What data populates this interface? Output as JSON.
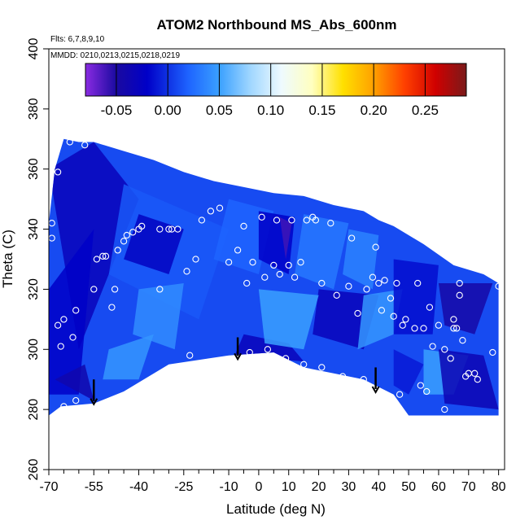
{
  "chart_data": {
    "type": "heatmap",
    "title": "ATOM2 Northbound MS_Abs_600nm",
    "subtitle_flights": "Flts: 6,7,8,9,10",
    "subtitle_dates": "MMDD: 0210,0213,0215,0218,0219",
    "xlabel": "Latitude (deg N)",
    "ylabel": "Theta (C)",
    "xlim": [
      -70,
      82
    ],
    "ylim": [
      260,
      400
    ],
    "x_ticks": [
      -70,
      -55,
      -40,
      -25,
      -10,
      0,
      10,
      20,
      30,
      40,
      50,
      60,
      70,
      80
    ],
    "x_minor_ticks": [
      -65,
      -60,
      -50,
      -45,
      -35,
      -30,
      -20,
      -15,
      -5,
      5,
      15,
      25,
      35,
      45,
      55,
      65,
      75
    ],
    "y_ticks": [
      260,
      280,
      300,
      320,
      340,
      360,
      380,
      400
    ],
    "colorbar": {
      "range": [
        -0.08,
        0.29
      ],
      "ticks": [
        -0.05,
        0.0,
        0.05,
        0.1,
        0.15,
        0.2,
        0.25
      ],
      "tick_labels": [
        "-0.05",
        "0.00",
        "0.05",
        "0.10",
        "0.15",
        "0.20",
        "0.25"
      ],
      "color_stops": [
        {
          "v": -0.08,
          "c": "#8a2be2"
        },
        {
          "v": -0.05,
          "c": "#1a0aa0"
        },
        {
          "v": -0.02,
          "c": "#0000c8"
        },
        {
          "v": 0.02,
          "c": "#1e64ff"
        },
        {
          "v": 0.05,
          "c": "#3aa0ff"
        },
        {
          "v": 0.08,
          "c": "#9fd6ff"
        },
        {
          "v": 0.11,
          "c": "#eefaff"
        },
        {
          "v": 0.14,
          "c": "#ffffc0"
        },
        {
          "v": 0.17,
          "c": "#ffe000"
        },
        {
          "v": 0.2,
          "c": "#ffa000"
        },
        {
          "v": 0.23,
          "c": "#ff4000"
        },
        {
          "v": 0.26,
          "c": "#d00000"
        },
        {
          "v": 0.29,
          "c": "#7a1a1a"
        }
      ]
    },
    "field_shape_top": [
      [
        -70,
        342
      ],
      [
        -68,
        360
      ],
      [
        -65,
        370
      ],
      [
        -60,
        369
      ],
      [
        -55,
        369
      ],
      [
        -45,
        366
      ],
      [
        -35,
        363
      ],
      [
        -25,
        359
      ],
      [
        -15,
        356
      ],
      [
        -5,
        354
      ],
      [
        5,
        352
      ],
      [
        15,
        351
      ],
      [
        25,
        348
      ],
      [
        35,
        346
      ],
      [
        40,
        343
      ],
      [
        45,
        341
      ],
      [
        55,
        335
      ],
      [
        65,
        328
      ],
      [
        75,
        325
      ],
      [
        80,
        322
      ]
    ],
    "field_shape_bottom": [
      [
        -70,
        278
      ],
      [
        -66,
        281
      ],
      [
        -55,
        282
      ],
      [
        -45,
        286
      ],
      [
        -30,
        295
      ],
      [
        -10,
        298
      ],
      [
        5,
        299
      ],
      [
        15,
        294
      ],
      [
        25,
        292
      ],
      [
        35,
        290
      ],
      [
        45,
        285
      ],
      [
        50,
        278
      ],
      [
        60,
        278
      ],
      [
        80,
        278
      ]
    ],
    "field_patches": [
      {
        "v": -0.03,
        "pts": [
          [
            -70,
            360
          ],
          [
            -55,
            369
          ],
          [
            -40,
            350
          ],
          [
            -60,
            300
          ]
        ]
      },
      {
        "v": -0.02,
        "pts": [
          [
            -70,
            320
          ],
          [
            -55,
            340
          ],
          [
            -60,
            285
          ],
          [
            -70,
            285
          ]
        ]
      },
      {
        "v": -0.04,
        "pts": [
          [
            -68,
            290
          ],
          [
            -55,
            283
          ],
          [
            -58,
            295
          ]
        ]
      },
      {
        "v": 0.015,
        "pts": [
          [
            -45,
            355
          ],
          [
            -10,
            340
          ],
          [
            -20,
            310
          ],
          [
            -50,
            325
          ]
        ]
      },
      {
        "v": -0.025,
        "pts": [
          [
            -40,
            345
          ],
          [
            -25,
            340
          ],
          [
            -30,
            325
          ],
          [
            -45,
            330
          ]
        ]
      },
      {
        "v": 0.04,
        "pts": [
          [
            -40,
            320
          ],
          [
            -25,
            322
          ],
          [
            -28,
            300
          ],
          [
            -42,
            305
          ]
        ]
      },
      {
        "v": 0.02,
        "pts": [
          [
            -10,
            350
          ],
          [
            5,
            346
          ],
          [
            0,
            325
          ],
          [
            -15,
            330
          ]
        ]
      },
      {
        "v": -0.02,
        "pts": [
          [
            0,
            346
          ],
          [
            12,
            344
          ],
          [
            10,
            325
          ],
          [
            0,
            330
          ]
        ]
      },
      {
        "v": -0.06,
        "pts": [
          [
            7,
            344
          ],
          [
            11,
            342
          ],
          [
            9,
            330
          ]
        ]
      },
      {
        "v": -0.03,
        "pts": [
          [
            -5,
            305
          ],
          [
            10,
            302
          ],
          [
            15,
            296
          ],
          [
            -8,
            298
          ]
        ]
      },
      {
        "v": 0.03,
        "pts": [
          [
            15,
            345
          ],
          [
            30,
            342
          ],
          [
            25,
            320
          ],
          [
            12,
            325
          ]
        ]
      },
      {
        "v": 0.035,
        "pts": [
          [
            30,
            340
          ],
          [
            40,
            338
          ],
          [
            38,
            320
          ],
          [
            28,
            325
          ]
        ]
      },
      {
        "v": -0.03,
        "pts": [
          [
            20,
            320
          ],
          [
            40,
            318
          ],
          [
            35,
            300
          ],
          [
            18,
            305
          ]
        ]
      },
      {
        "v": 0.045,
        "pts": [
          [
            35,
            318
          ],
          [
            48,
            320
          ],
          [
            45,
            305
          ],
          [
            33,
            300
          ]
        ]
      },
      {
        "v": -0.015,
        "pts": [
          [
            45,
            330
          ],
          [
            60,
            328
          ],
          [
            58,
            305
          ],
          [
            45,
            305
          ]
        ]
      },
      {
        "v": -0.045,
        "pts": [
          [
            60,
            322
          ],
          [
            78,
            322
          ],
          [
            72,
            305
          ],
          [
            62,
            308
          ]
        ]
      },
      {
        "v": 0.05,
        "pts": [
          [
            55,
            300
          ],
          [
            70,
            298
          ],
          [
            65,
            285
          ],
          [
            55,
            285
          ]
        ]
      },
      {
        "v": -0.035,
        "pts": [
          [
            60,
            300
          ],
          [
            75,
            298
          ],
          [
            80,
            280
          ],
          [
            62,
            282
          ]
        ]
      },
      {
        "v": 0.045,
        "pts": [
          [
            -50,
            300
          ],
          [
            -35,
            305
          ],
          [
            -40,
            290
          ],
          [
            -52,
            290
          ]
        ]
      },
      {
        "v": 0.05,
        "pts": [
          [
            0,
            320
          ],
          [
            20,
            318
          ],
          [
            15,
            300
          ],
          [
            2,
            302
          ]
        ]
      },
      {
        "v": -0.01,
        "pts": [
          [
            45,
            300
          ],
          [
            55,
            295
          ],
          [
            50,
            285
          ],
          [
            45,
            288
          ]
        ]
      }
    ],
    "points": [
      {
        "x": -69,
        "y": 342
      },
      {
        "x": -69,
        "y": 337
      },
      {
        "x": -68,
        "y": 278
      },
      {
        "x": -67,
        "y": 359
      },
      {
        "x": -67,
        "y": 308
      },
      {
        "x": -66,
        "y": 301
      },
      {
        "x": -65,
        "y": 281
      },
      {
        "x": -65,
        "y": 310
      },
      {
        "x": -63,
        "y": 369
      },
      {
        "x": -62,
        "y": 304
      },
      {
        "x": -61,
        "y": 313
      },
      {
        "x": -61,
        "y": 283
      },
      {
        "x": -58,
        "y": 368
      },
      {
        "x": -55,
        "y": 320
      },
      {
        "x": -54,
        "y": 330
      },
      {
        "x": -52,
        "y": 331
      },
      {
        "x": -51,
        "y": 331
      },
      {
        "x": -49,
        "y": 314
      },
      {
        "x": -48,
        "y": 320
      },
      {
        "x": -47,
        "y": 333
      },
      {
        "x": -45,
        "y": 336
      },
      {
        "x": -44,
        "y": 338
      },
      {
        "x": -42,
        "y": 339
      },
      {
        "x": -40,
        "y": 340
      },
      {
        "x": -39,
        "y": 341
      },
      {
        "x": -33,
        "y": 320
      },
      {
        "x": -33,
        "y": 340
      },
      {
        "x": -30,
        "y": 340
      },
      {
        "x": -29,
        "y": 340
      },
      {
        "x": -27,
        "y": 340
      },
      {
        "x": -24,
        "y": 326
      },
      {
        "x": -23,
        "y": 298
      },
      {
        "x": -21,
        "y": 330
      },
      {
        "x": -19,
        "y": 343
      },
      {
        "x": -16,
        "y": 346
      },
      {
        "x": -13,
        "y": 347
      },
      {
        "x": -10,
        "y": 329
      },
      {
        "x": -7,
        "y": 333
      },
      {
        "x": -5,
        "y": 341
      },
      {
        "x": -4,
        "y": 322
      },
      {
        "x": -3,
        "y": 299
      },
      {
        "x": -2,
        "y": 329
      },
      {
        "x": 1,
        "y": 344
      },
      {
        "x": 2,
        "y": 324
      },
      {
        "x": 3,
        "y": 300
      },
      {
        "x": 5,
        "y": 328
      },
      {
        "x": 6,
        "y": 343
      },
      {
        "x": 7,
        "y": 325
      },
      {
        "x": 9,
        "y": 297
      },
      {
        "x": 10,
        "y": 328
      },
      {
        "x": 11,
        "y": 343
      },
      {
        "x": 12,
        "y": 324
      },
      {
        "x": 14,
        "y": 329
      },
      {
        "x": 15,
        "y": 295
      },
      {
        "x": 16,
        "y": 343
      },
      {
        "x": 18,
        "y": 344
      },
      {
        "x": 19,
        "y": 343
      },
      {
        "x": 21,
        "y": 322
      },
      {
        "x": 21,
        "y": 294
      },
      {
        "x": 24,
        "y": 342
      },
      {
        "x": 26,
        "y": 318
      },
      {
        "x": 28,
        "y": 291
      },
      {
        "x": 30,
        "y": 321
      },
      {
        "x": 31,
        "y": 337
      },
      {
        "x": 33,
        "y": 312
      },
      {
        "x": 35,
        "y": 290
      },
      {
        "x": 36,
        "y": 320
      },
      {
        "x": 38,
        "y": 324
      },
      {
        "x": 39,
        "y": 334
      },
      {
        "x": 40,
        "y": 322
      },
      {
        "x": 41,
        "y": 313
      },
      {
        "x": 42,
        "y": 323
      },
      {
        "x": 44,
        "y": 317
      },
      {
        "x": 45,
        "y": 311
      },
      {
        "x": 46,
        "y": 322
      },
      {
        "x": 47,
        "y": 285
      },
      {
        "x": 48,
        "y": 308
      },
      {
        "x": 49,
        "y": 310
      },
      {
        "x": 52,
        "y": 307
      },
      {
        "x": 53,
        "y": 322
      },
      {
        "x": 54,
        "y": 288
      },
      {
        "x": 55,
        "y": 307
      },
      {
        "x": 56,
        "y": 286
      },
      {
        "x": 57,
        "y": 314
      },
      {
        "x": 58,
        "y": 301
      },
      {
        "x": 60,
        "y": 308
      },
      {
        "x": 62,
        "y": 300
      },
      {
        "x": 62,
        "y": 280
      },
      {
        "x": 64,
        "y": 297
      },
      {
        "x": 65,
        "y": 310
      },
      {
        "x": 65,
        "y": 307
      },
      {
        "x": 66,
        "y": 307
      },
      {
        "x": 67,
        "y": 318
      },
      {
        "x": 67,
        "y": 322
      },
      {
        "x": 68,
        "y": 303
      },
      {
        "x": 69,
        "y": 291
      },
      {
        "x": 70,
        "y": 292
      },
      {
        "x": 72,
        "y": 292
      },
      {
        "x": 73,
        "y": 290
      },
      {
        "x": 78,
        "y": 299
      },
      {
        "x": 80,
        "y": 321
      }
    ],
    "arrows": [
      {
        "x": -55,
        "y_top": 290,
        "y_bottom": 282
      },
      {
        "x": -7,
        "y_top": 304,
        "y_bottom": 297
      },
      {
        "x": 39,
        "y_top": 294,
        "y_bottom": 286
      }
    ]
  }
}
